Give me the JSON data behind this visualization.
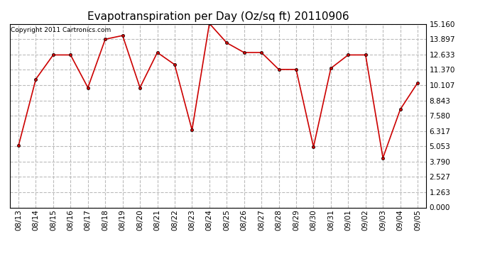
{
  "title": "Evapotranspiration per Day (Oz/sq ft) 20110906",
  "copyright": "Copyright 2011 Cartronics.com",
  "dates": [
    "08/13",
    "08/14",
    "08/15",
    "08/16",
    "08/17",
    "08/18",
    "08/19",
    "08/20",
    "08/21",
    "08/22",
    "08/23",
    "08/24",
    "08/25",
    "08/26",
    "08/27",
    "08/28",
    "08/29",
    "08/30",
    "08/31",
    "09/01",
    "09/02",
    "09/03",
    "09/04",
    "09/05"
  ],
  "values": [
    5.1,
    10.6,
    12.6,
    12.6,
    9.9,
    13.9,
    14.2,
    9.9,
    12.8,
    11.8,
    6.4,
    15.2,
    13.6,
    12.8,
    12.8,
    11.4,
    11.4,
    5.0,
    11.5,
    12.6,
    12.6,
    4.1,
    8.1,
    10.3
  ],
  "line_color": "#cc0000",
  "marker_color": "#cc0000",
  "bg_color": "#ffffff",
  "plot_bg_color": "#ffffff",
  "grid_color": "#bbbbbb",
  "yticks": [
    0.0,
    1.263,
    2.527,
    3.79,
    5.053,
    6.317,
    7.58,
    8.843,
    10.107,
    11.37,
    12.633,
    13.897,
    15.16
  ],
  "ylim": [
    0.0,
    15.16
  ],
  "title_fontsize": 11,
  "copyright_fontsize": 6.5,
  "tick_fontsize": 7.5
}
